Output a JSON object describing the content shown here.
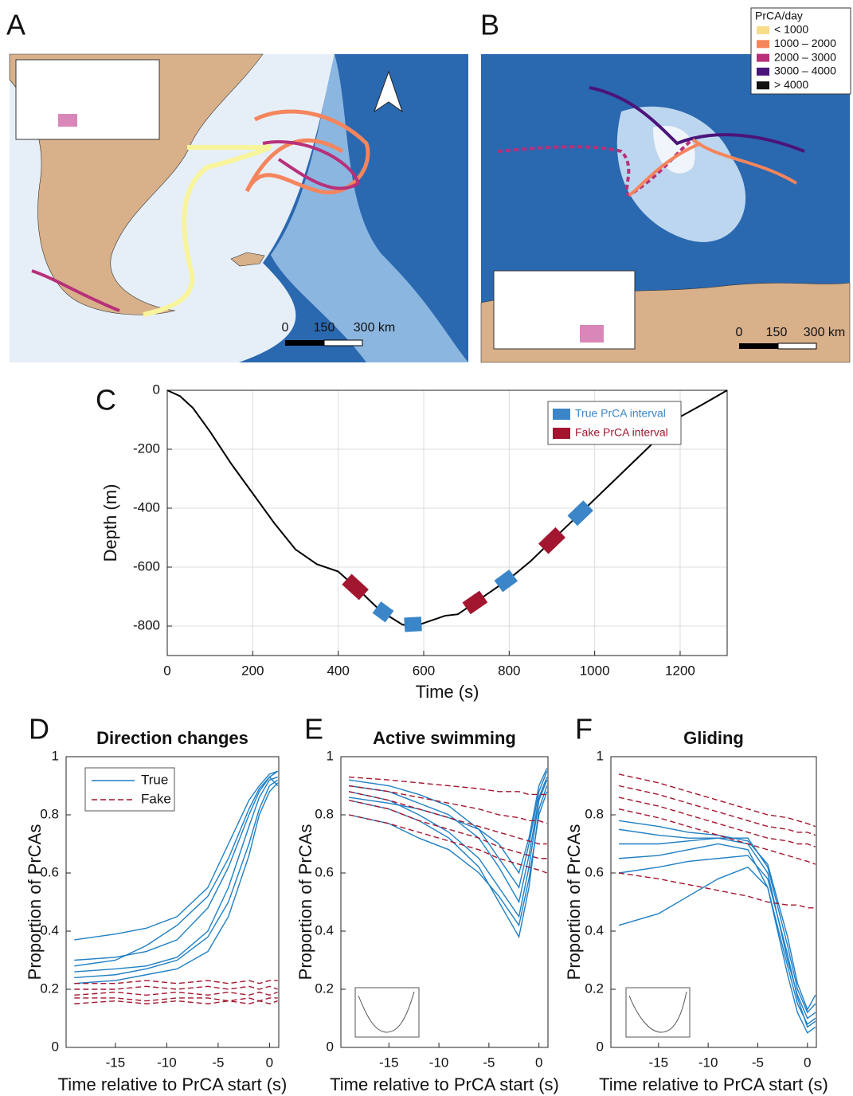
{
  "maps": {
    "panels": [
      {
        "letter": "A",
        "scale_labels": [
          "0",
          "150",
          "300 km"
        ]
      },
      {
        "letter": "B",
        "scale_labels": [
          "0",
          "150",
          "300 km"
        ]
      }
    ],
    "legend": {
      "title": "PrCA/day",
      "entries": [
        {
          "label": "< 1000",
          "color": "#f7dc8a"
        },
        {
          "label": "1000 – 2000",
          "color": "#f4855c"
        },
        {
          "label": "2000 – 3000",
          "color": "#b8307a"
        },
        {
          "label": "3000 – 4000",
          "color": "#4b1479"
        },
        {
          "label": "> 4000",
          "color": "#111111"
        }
      ]
    }
  },
  "chart_data": [
    {
      "type": "line",
      "panel": "C",
      "xlabel": "Time (s)",
      "ylabel": "Depth (m)",
      "x": [
        0,
        30,
        60,
        100,
        150,
        200,
        250,
        300,
        350,
        400,
        450,
        500,
        550,
        580,
        600,
        650,
        680,
        700,
        750,
        800,
        850,
        900,
        950,
        1000,
        1050,
        1100,
        1150,
        1200,
        1250,
        1310
      ],
      "values": [
        0,
        -20,
        -60,
        -140,
        -250,
        -350,
        -450,
        -540,
        -590,
        -615,
        -680,
        -750,
        -795,
        -800,
        -790,
        -765,
        -760,
        -740,
        -690,
        -640,
        -580,
        -510,
        -440,
        -370,
        -300,
        -230,
        -160,
        -90,
        -50,
        0
      ],
      "color": "#000000",
      "series": [
        {
          "name": "True PrCA interval",
          "color": "#3a86c8",
          "intervals": [
            [
              490,
              520
            ],
            [
              555,
              595
            ],
            [
              775,
              810
            ],
            [
              948,
              985
            ]
          ]
        },
        {
          "name": "Fake PrCA interval",
          "color": "#a3162f",
          "intervals": [
            [
              420,
              460
            ],
            [
              700,
              740
            ],
            [
              880,
              920
            ]
          ]
        }
      ],
      "xlim": [
        0,
        1310
      ],
      "ylim": [
        -900,
        0
      ],
      "xticks": [
        0,
        200,
        400,
        600,
        800,
        1000,
        1200
      ],
      "yticks": [
        -800,
        -600,
        -400,
        -200,
        0
      ],
      "grid": true,
      "legend": "upper right"
    },
    {
      "type": "line",
      "panel": "D",
      "title": "Direction changes",
      "xlabel": "Time relative to PrCA start (s)",
      "ylabel": "Proportion of PrCAs",
      "x": [
        -19,
        -15,
        -12,
        -9,
        -6,
        -4,
        -2,
        -1,
        0,
        0.8
      ],
      "series": [
        {
          "name": "True",
          "color": "#1f7fc4",
          "dashed": false,
          "lines": [
            [
              0.37,
              0.39,
              0.41,
              0.45,
              0.55,
              0.7,
              0.85,
              0.9,
              0.94,
              0.95
            ],
            [
              0.3,
              0.31,
              0.33,
              0.37,
              0.48,
              0.62,
              0.8,
              0.88,
              0.93,
              0.95
            ],
            [
              0.26,
              0.27,
              0.28,
              0.31,
              0.4,
              0.55,
              0.76,
              0.86,
              0.92,
              0.93
            ],
            [
              0.24,
              0.25,
              0.27,
              0.3,
              0.38,
              0.5,
              0.7,
              0.82,
              0.9,
              0.92
            ],
            [
              0.22,
              0.23,
              0.25,
              0.27,
              0.33,
              0.45,
              0.66,
              0.8,
              0.88,
              0.91
            ],
            [
              0.28,
              0.3,
              0.35,
              0.42,
              0.52,
              0.65,
              0.82,
              0.89,
              0.93,
              0.9
            ]
          ]
        },
        {
          "name": "Fake",
          "color": "#a3162f",
          "dashed": true,
          "lines": [
            [
              0.22,
              0.22,
              0.23,
              0.22,
              0.23,
              0.22,
              0.23,
              0.22,
              0.23,
              0.23
            ],
            [
              0.2,
              0.2,
              0.21,
              0.2,
              0.21,
              0.2,
              0.21,
              0.2,
              0.21,
              0.2
            ],
            [
              0.18,
              0.19,
              0.18,
              0.19,
              0.18,
              0.19,
              0.18,
              0.19,
              0.18,
              0.19
            ],
            [
              0.17,
              0.17,
              0.16,
              0.17,
              0.17,
              0.16,
              0.17,
              0.16,
              0.17,
              0.17
            ],
            [
              0.15,
              0.16,
              0.15,
              0.16,
              0.15,
              0.16,
              0.15,
              0.16,
              0.15,
              0.16
            ]
          ]
        }
      ],
      "xlim": [
        -19.8,
        0.9
      ],
      "ylim": [
        0,
        1
      ],
      "xticks": [
        -15,
        -10,
        -5,
        0
      ],
      "yticks": [
        0,
        0.2,
        0.4,
        0.6,
        0.8,
        1
      ],
      "grid": false,
      "legend": "upper left"
    },
    {
      "type": "line",
      "panel": "E",
      "title": "Active swimming",
      "xlabel": "Time relative to PrCA start (s)",
      "ylabel": "Proportion of PrCAs",
      "x": [
        -19,
        -15,
        -12,
        -9,
        -6,
        -4,
        -2,
        -1,
        0,
        0.8
      ],
      "series": [
        {
          "color": "#1f7fc4",
          "dashed": false,
          "lines": [
            [
              0.92,
              0.9,
              0.87,
              0.83,
              0.75,
              0.65,
              0.55,
              0.7,
              0.88,
              0.95
            ],
            [
              0.88,
              0.85,
              0.8,
              0.74,
              0.65,
              0.55,
              0.45,
              0.62,
              0.85,
              0.92
            ],
            [
              0.85,
              0.82,
              0.78,
              0.72,
              0.62,
              0.5,
              0.38,
              0.55,
              0.82,
              0.9
            ],
            [
              0.9,
              0.88,
              0.84,
              0.8,
              0.72,
              0.62,
              0.5,
              0.66,
              0.86,
              0.93
            ],
            [
              0.8,
              0.77,
              0.72,
              0.68,
              0.6,
              0.52,
              0.42,
              0.58,
              0.8,
              0.88
            ],
            [
              0.86,
              0.84,
              0.82,
              0.79,
              0.75,
              0.7,
              0.6,
              0.72,
              0.9,
              0.96
            ]
          ]
        },
        {
          "color": "#a3162f",
          "dashed": true,
          "lines": [
            [
              0.93,
              0.92,
              0.91,
              0.9,
              0.89,
              0.88,
              0.88,
              0.87,
              0.87,
              0.87
            ],
            [
              0.9,
              0.88,
              0.86,
              0.84,
              0.82,
              0.8,
              0.79,
              0.78,
              0.78,
              0.77
            ],
            [
              0.88,
              0.85,
              0.82,
              0.79,
              0.76,
              0.74,
              0.72,
              0.71,
              0.7,
              0.7
            ],
            [
              0.85,
              0.82,
              0.78,
              0.75,
              0.72,
              0.69,
              0.67,
              0.66,
              0.65,
              0.65
            ],
            [
              0.8,
              0.77,
              0.74,
              0.71,
              0.68,
              0.65,
              0.63,
              0.62,
              0.61,
              0.6
            ]
          ]
        }
      ],
      "xlim": [
        -19.8,
        0.9
      ],
      "ylim": [
        0,
        1
      ],
      "xticks": [
        -15,
        -10,
        -5,
        0
      ],
      "yticks": [
        0,
        0.2,
        0.4,
        0.6,
        0.8,
        1
      ],
      "grid": false
    },
    {
      "type": "line",
      "panel": "F",
      "title": "Gliding",
      "xlabel": "Time relative to PrCA start (s)",
      "ylabel": "Proportion of PrCAs",
      "x": [
        -19,
        -15,
        -12,
        -9,
        -6,
        -4,
        -2,
        -1,
        0,
        0.8
      ],
      "series": [
        {
          "color": "#1f7fc4",
          "dashed": false,
          "lines": [
            [
              0.75,
              0.73,
              0.72,
              0.72,
              0.7,
              0.6,
              0.3,
              0.18,
              0.1,
              0.12
            ],
            [
              0.7,
              0.7,
              0.71,
              0.72,
              0.72,
              0.62,
              0.35,
              0.2,
              0.12,
              0.15
            ],
            [
              0.65,
              0.66,
              0.68,
              0.7,
              0.68,
              0.55,
              0.28,
              0.15,
              0.08,
              0.1
            ],
            [
              0.6,
              0.62,
              0.64,
              0.65,
              0.66,
              0.58,
              0.32,
              0.17,
              0.07,
              0.09
            ],
            [
              0.42,
              0.46,
              0.52,
              0.58,
              0.62,
              0.55,
              0.25,
              0.12,
              0.05,
              0.07
            ],
            [
              0.78,
              0.76,
              0.74,
              0.73,
              0.71,
              0.63,
              0.38,
              0.22,
              0.13,
              0.18
            ]
          ]
        },
        {
          "color": "#a3162f",
          "dashed": true,
          "lines": [
            [
              0.94,
              0.91,
              0.88,
              0.85,
              0.82,
              0.8,
              0.79,
              0.78,
              0.77,
              0.76
            ],
            [
              0.9,
              0.87,
              0.84,
              0.81,
              0.78,
              0.76,
              0.75,
              0.74,
              0.74,
              0.73
            ],
            [
              0.86,
              0.83,
              0.8,
              0.77,
              0.74,
              0.72,
              0.71,
              0.7,
              0.7,
              0.69
            ],
            [
              0.82,
              0.79,
              0.76,
              0.73,
              0.7,
              0.68,
              0.66,
              0.65,
              0.64,
              0.63
            ],
            [
              0.6,
              0.58,
              0.56,
              0.54,
              0.52,
              0.5,
              0.49,
              0.49,
              0.48,
              0.48
            ]
          ]
        }
      ],
      "xlim": [
        -19.8,
        0.9
      ],
      "ylim": [
        0,
        1
      ],
      "xticks": [
        -15,
        -10,
        -5,
        0
      ],
      "yticks": [
        0,
        0.2,
        0.4,
        0.6,
        0.8,
        1
      ],
      "grid": false
    }
  ]
}
